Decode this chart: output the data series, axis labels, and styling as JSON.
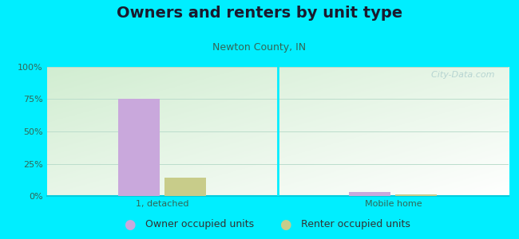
{
  "title": "Owners and renters by unit type",
  "subtitle": "Newton County, IN",
  "categories": [
    "1, detached",
    "Mobile home"
  ],
  "series": [
    {
      "name": "Owner occupied units",
      "color": "#c9a8dc",
      "values": [
        75.5,
        3.0
      ]
    },
    {
      "name": "Renter occupied units",
      "color": "#c8cc8a",
      "values": [
        14.0,
        1.2
      ]
    }
  ],
  "ylim": [
    0,
    100
  ],
  "yticks": [
    0,
    25,
    50,
    75,
    100
  ],
  "ytick_labels": [
    "0%",
    "25%",
    "50%",
    "75%",
    "100%"
  ],
  "background_color": "#00eeff",
  "watermark": "  City-Data.com",
  "title_fontsize": 14,
  "subtitle_fontsize": 9,
  "tick_fontsize": 8,
  "legend_fontsize": 9
}
